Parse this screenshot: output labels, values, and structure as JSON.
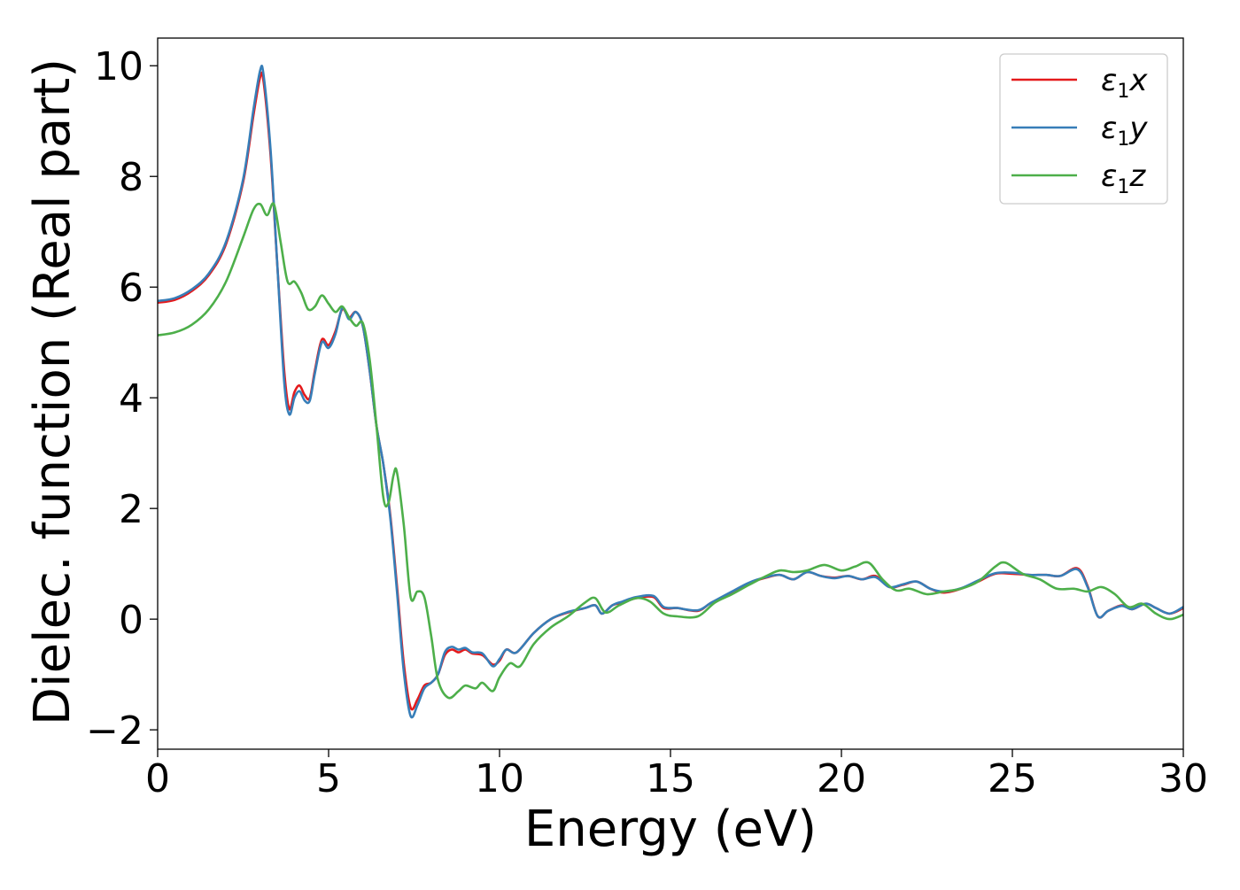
{
  "chart_data": {
    "type": "line",
    "title": "",
    "xlabel": "Energy (eV)",
    "ylabel": "Dielec. function (Real part)",
    "xlim": [
      0,
      30
    ],
    "ylim": [
      -2.35,
      10.5
    ],
    "x_ticks": [
      0,
      5,
      10,
      15,
      20,
      25,
      30
    ],
    "y_ticks": [
      -2,
      0,
      2,
      4,
      6,
      8,
      10
    ],
    "x_tick_labels": [
      "0",
      "5",
      "10",
      "15",
      "20",
      "25",
      "30"
    ],
    "y_tick_labels": [
      "−2",
      "0",
      "2",
      "4",
      "6",
      "8",
      "10"
    ],
    "grid": false,
    "legend_position": "top-right",
    "series": [
      {
        "name": "ε₁x",
        "label_main": "ε",
        "label_sub": "1",
        "label_tail": "x",
        "color": "#e41a1c",
        "points": [
          [
            0,
            5.72
          ],
          [
            0.5,
            5.77
          ],
          [
            1.0,
            5.93
          ],
          [
            1.5,
            6.22
          ],
          [
            2.0,
            6.78
          ],
          [
            2.5,
            7.9
          ],
          [
            2.8,
            9.1
          ],
          [
            3.0,
            9.8
          ],
          [
            3.1,
            9.7
          ],
          [
            3.3,
            8.4
          ],
          [
            3.5,
            6.4
          ],
          [
            3.7,
            4.5
          ],
          [
            3.85,
            3.8
          ],
          [
            4.0,
            4.1
          ],
          [
            4.15,
            4.22
          ],
          [
            4.3,
            4.05
          ],
          [
            4.45,
            4.0
          ],
          [
            4.6,
            4.5
          ],
          [
            4.8,
            5.05
          ],
          [
            5.0,
            4.95
          ],
          [
            5.2,
            5.2
          ],
          [
            5.4,
            5.6
          ],
          [
            5.6,
            5.45
          ],
          [
            5.8,
            5.55
          ],
          [
            6.0,
            5.3
          ],
          [
            6.2,
            4.5
          ],
          [
            6.4,
            3.5
          ],
          [
            6.6,
            2.8
          ],
          [
            6.8,
            1.9
          ],
          [
            7.0,
            0.6
          ],
          [
            7.2,
            -0.8
          ],
          [
            7.4,
            -1.6
          ],
          [
            7.6,
            -1.45
          ],
          [
            7.8,
            -1.2
          ],
          [
            8.0,
            -1.15
          ],
          [
            8.2,
            -1.0
          ],
          [
            8.4,
            -0.65
          ],
          [
            8.6,
            -0.55
          ],
          [
            8.8,
            -0.6
          ],
          [
            9.0,
            -0.55
          ],
          [
            9.2,
            -0.62
          ],
          [
            9.5,
            -0.65
          ],
          [
            9.8,
            -0.82
          ],
          [
            10.0,
            -0.75
          ],
          [
            10.2,
            -0.55
          ],
          [
            10.5,
            -0.6
          ],
          [
            11.0,
            -0.25
          ],
          [
            11.5,
            0.0
          ],
          [
            12.0,
            0.12
          ],
          [
            12.5,
            0.2
          ],
          [
            12.8,
            0.25
          ],
          [
            13.0,
            0.1
          ],
          [
            13.3,
            0.25
          ],
          [
            13.6,
            0.3
          ],
          [
            14.0,
            0.38
          ],
          [
            14.5,
            0.4
          ],
          [
            14.8,
            0.2
          ],
          [
            15.2,
            0.2
          ],
          [
            15.8,
            0.15
          ],
          [
            16.2,
            0.3
          ],
          [
            16.8,
            0.48
          ],
          [
            17.3,
            0.65
          ],
          [
            17.8,
            0.75
          ],
          [
            18.2,
            0.8
          ],
          [
            18.6,
            0.72
          ],
          [
            19.0,
            0.85
          ],
          [
            19.4,
            0.78
          ],
          [
            19.8,
            0.75
          ],
          [
            20.2,
            0.78
          ],
          [
            20.6,
            0.72
          ],
          [
            21.0,
            0.78
          ],
          [
            21.4,
            0.58
          ],
          [
            21.8,
            0.62
          ],
          [
            22.2,
            0.68
          ],
          [
            22.6,
            0.55
          ],
          [
            23.0,
            0.48
          ],
          [
            23.5,
            0.55
          ],
          [
            24.0,
            0.68
          ],
          [
            24.5,
            0.82
          ],
          [
            25.0,
            0.82
          ],
          [
            25.5,
            0.8
          ],
          [
            26.0,
            0.8
          ],
          [
            26.4,
            0.78
          ],
          [
            26.9,
            0.92
          ],
          [
            27.2,
            0.6
          ],
          [
            27.5,
            0.05
          ],
          [
            27.8,
            0.15
          ],
          [
            28.2,
            0.25
          ],
          [
            28.5,
            0.18
          ],
          [
            28.9,
            0.28
          ],
          [
            29.2,
            0.2
          ],
          [
            29.6,
            0.1
          ],
          [
            30.0,
            0.2
          ]
        ]
      },
      {
        "name": "ε₁y",
        "label_main": "ε",
        "label_sub": "1",
        "label_tail": "y",
        "color": "#377eb8",
        "points": [
          [
            0,
            5.75
          ],
          [
            0.5,
            5.8
          ],
          [
            1.0,
            5.96
          ],
          [
            1.5,
            6.25
          ],
          [
            2.0,
            6.82
          ],
          [
            2.5,
            7.95
          ],
          [
            2.8,
            9.2
          ],
          [
            3.0,
            9.92
          ],
          [
            3.1,
            9.82
          ],
          [
            3.3,
            8.5
          ],
          [
            3.5,
            6.4
          ],
          [
            3.7,
            4.3
          ],
          [
            3.85,
            3.7
          ],
          [
            4.0,
            4.0
          ],
          [
            4.15,
            4.12
          ],
          [
            4.3,
            3.95
          ],
          [
            4.45,
            3.95
          ],
          [
            4.6,
            4.45
          ],
          [
            4.8,
            5.0
          ],
          [
            5.0,
            4.9
          ],
          [
            5.2,
            5.15
          ],
          [
            5.4,
            5.62
          ],
          [
            5.6,
            5.42
          ],
          [
            5.8,
            5.55
          ],
          [
            6.0,
            5.3
          ],
          [
            6.2,
            4.5
          ],
          [
            6.4,
            3.5
          ],
          [
            6.6,
            2.8
          ],
          [
            6.8,
            1.85
          ],
          [
            7.0,
            0.5
          ],
          [
            7.2,
            -0.95
          ],
          [
            7.4,
            -1.75
          ],
          [
            7.6,
            -1.55
          ],
          [
            7.8,
            -1.25
          ],
          [
            8.0,
            -1.15
          ],
          [
            8.2,
            -1.0
          ],
          [
            8.4,
            -0.6
          ],
          [
            8.6,
            -0.5
          ],
          [
            8.8,
            -0.55
          ],
          [
            9.0,
            -0.52
          ],
          [
            9.2,
            -0.6
          ],
          [
            9.5,
            -0.62
          ],
          [
            9.8,
            -0.85
          ],
          [
            10.0,
            -0.72
          ],
          [
            10.2,
            -0.55
          ],
          [
            10.5,
            -0.6
          ],
          [
            11.0,
            -0.25
          ],
          [
            11.5,
            0.0
          ],
          [
            12.0,
            0.13
          ],
          [
            12.5,
            0.2
          ],
          [
            12.8,
            0.25
          ],
          [
            13.0,
            0.1
          ],
          [
            13.3,
            0.25
          ],
          [
            13.6,
            0.32
          ],
          [
            14.0,
            0.4
          ],
          [
            14.5,
            0.42
          ],
          [
            14.8,
            0.22
          ],
          [
            15.2,
            0.2
          ],
          [
            15.8,
            0.16
          ],
          [
            16.2,
            0.3
          ],
          [
            16.8,
            0.5
          ],
          [
            17.3,
            0.66
          ],
          [
            17.8,
            0.76
          ],
          [
            18.2,
            0.8
          ],
          [
            18.6,
            0.72
          ],
          [
            19.0,
            0.85
          ],
          [
            19.4,
            0.78
          ],
          [
            19.8,
            0.74
          ],
          [
            20.2,
            0.78
          ],
          [
            20.6,
            0.72
          ],
          [
            21.0,
            0.76
          ],
          [
            21.4,
            0.58
          ],
          [
            21.8,
            0.63
          ],
          [
            22.2,
            0.68
          ],
          [
            22.6,
            0.55
          ],
          [
            23.0,
            0.5
          ],
          [
            23.5,
            0.56
          ],
          [
            24.0,
            0.7
          ],
          [
            24.5,
            0.83
          ],
          [
            25.0,
            0.84
          ],
          [
            25.5,
            0.8
          ],
          [
            26.0,
            0.8
          ],
          [
            26.4,
            0.78
          ],
          [
            26.9,
            0.9
          ],
          [
            27.2,
            0.58
          ],
          [
            27.5,
            0.05
          ],
          [
            27.8,
            0.15
          ],
          [
            28.2,
            0.24
          ],
          [
            28.5,
            0.18
          ],
          [
            28.9,
            0.28
          ],
          [
            29.2,
            0.2
          ],
          [
            29.6,
            0.1
          ],
          [
            30.0,
            0.22
          ]
        ]
      },
      {
        "name": "ε₁z",
        "label_main": "ε",
        "label_sub": "1",
        "label_tail": "z",
        "color": "#4daf4a",
        "points": [
          [
            0,
            5.13
          ],
          [
            0.5,
            5.18
          ],
          [
            1.0,
            5.32
          ],
          [
            1.5,
            5.6
          ],
          [
            2.0,
            6.1
          ],
          [
            2.5,
            6.9
          ],
          [
            2.8,
            7.4
          ],
          [
            3.0,
            7.5
          ],
          [
            3.2,
            7.3
          ],
          [
            3.4,
            7.5
          ],
          [
            3.6,
            6.8
          ],
          [
            3.8,
            6.1
          ],
          [
            4.0,
            6.1
          ],
          [
            4.2,
            5.9
          ],
          [
            4.4,
            5.6
          ],
          [
            4.6,
            5.65
          ],
          [
            4.8,
            5.85
          ],
          [
            5.0,
            5.7
          ],
          [
            5.2,
            5.55
          ],
          [
            5.4,
            5.65
          ],
          [
            5.6,
            5.45
          ],
          [
            5.8,
            5.3
          ],
          [
            6.0,
            5.35
          ],
          [
            6.2,
            4.7
          ],
          [
            6.4,
            3.5
          ],
          [
            6.6,
            2.2
          ],
          [
            6.75,
            2.1
          ],
          [
            6.9,
            2.6
          ],
          [
            7.0,
            2.65
          ],
          [
            7.2,
            1.7
          ],
          [
            7.4,
            0.4
          ],
          [
            7.6,
            0.5
          ],
          [
            7.8,
            0.4
          ],
          [
            8.0,
            -0.3
          ],
          [
            8.2,
            -1.1
          ],
          [
            8.5,
            -1.42
          ],
          [
            8.8,
            -1.3
          ],
          [
            9.0,
            -1.2
          ],
          [
            9.3,
            -1.25
          ],
          [
            9.5,
            -1.15
          ],
          [
            9.8,
            -1.3
          ],
          [
            10.0,
            -1.05
          ],
          [
            10.3,
            -0.8
          ],
          [
            10.6,
            -0.85
          ],
          [
            11.0,
            -0.45
          ],
          [
            11.5,
            -0.15
          ],
          [
            12.0,
            0.05
          ],
          [
            12.5,
            0.3
          ],
          [
            12.8,
            0.38
          ],
          [
            13.1,
            0.12
          ],
          [
            13.5,
            0.25
          ],
          [
            14.0,
            0.38
          ],
          [
            14.4,
            0.32
          ],
          [
            14.8,
            0.1
          ],
          [
            15.2,
            0.05
          ],
          [
            15.8,
            0.05
          ],
          [
            16.3,
            0.3
          ],
          [
            16.8,
            0.45
          ],
          [
            17.3,
            0.62
          ],
          [
            17.8,
            0.78
          ],
          [
            18.2,
            0.88
          ],
          [
            18.6,
            0.85
          ],
          [
            19.0,
            0.88
          ],
          [
            19.5,
            0.98
          ],
          [
            20.0,
            0.88
          ],
          [
            20.4,
            0.95
          ],
          [
            20.8,
            1.02
          ],
          [
            21.2,
            0.72
          ],
          [
            21.6,
            0.52
          ],
          [
            22.0,
            0.55
          ],
          [
            22.5,
            0.45
          ],
          [
            23.0,
            0.5
          ],
          [
            23.5,
            0.55
          ],
          [
            24.0,
            0.68
          ],
          [
            24.5,
            0.95
          ],
          [
            24.8,
            1.02
          ],
          [
            25.3,
            0.82
          ],
          [
            25.8,
            0.72
          ],
          [
            26.3,
            0.55
          ],
          [
            26.8,
            0.55
          ],
          [
            27.2,
            0.5
          ],
          [
            27.6,
            0.58
          ],
          [
            28.0,
            0.45
          ],
          [
            28.4,
            0.22
          ],
          [
            28.8,
            0.28
          ],
          [
            29.2,
            0.1
          ],
          [
            29.6,
            0.0
          ],
          [
            30.0,
            0.08
          ]
        ]
      }
    ]
  }
}
